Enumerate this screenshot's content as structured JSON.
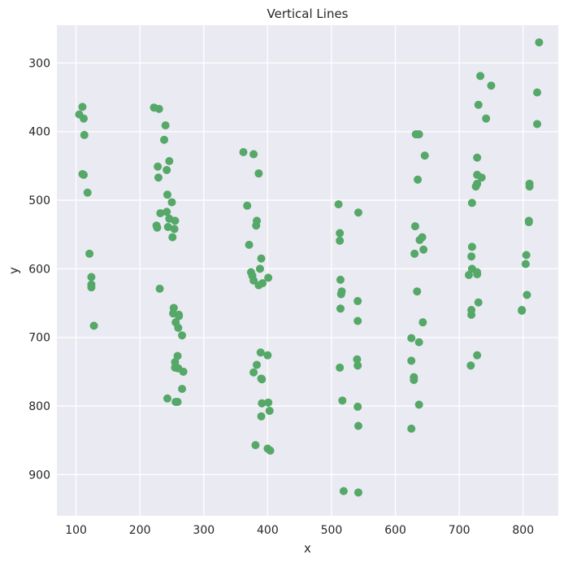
{
  "chart_data": {
    "type": "scatter",
    "title": "Vertical Lines",
    "xlabel": "x",
    "ylabel": "y",
    "xlim": [
      70,
      855
    ],
    "ylim": [
      960,
      245
    ],
    "y_inverted": true,
    "grid": true,
    "x_ticks": [
      100,
      200,
      300,
      400,
      500,
      600,
      700,
      800
    ],
    "y_ticks": [
      300,
      400,
      500,
      600,
      700,
      800,
      900
    ],
    "colors": {
      "background": "#eaeaf2",
      "grid": "#ffffff",
      "marker": "#55a868"
    },
    "series": [
      {
        "points": [
          [
            105,
            375
          ],
          [
            110,
            364
          ],
          [
            112,
            381
          ],
          [
            113,
            405
          ],
          [
            110,
            462
          ],
          [
            112,
            463
          ],
          [
            118,
            489
          ],
          [
            121,
            578
          ],
          [
            124,
            612
          ],
          [
            124,
            623
          ],
          [
            124,
            627
          ],
          [
            128,
            683
          ],
          [
            222,
            365
          ],
          [
            230,
            367
          ],
          [
            240,
            391
          ],
          [
            238,
            412
          ],
          [
            246,
            443
          ],
          [
            228,
            451
          ],
          [
            242,
            456
          ],
          [
            229,
            467
          ],
          [
            243,
            492
          ],
          [
            250,
            503
          ],
          [
            232,
            519
          ],
          [
            242,
            517
          ],
          [
            246,
            527
          ],
          [
            255,
            530
          ],
          [
            226,
            537
          ],
          [
            227,
            540
          ],
          [
            244,
            539
          ],
          [
            254,
            542
          ],
          [
            251,
            554
          ],
          [
            231,
            629
          ],
          [
            253,
            657
          ],
          [
            252,
            665
          ],
          [
            261,
            667
          ],
          [
            261,
            669
          ],
          [
            256,
            678
          ],
          [
            260,
            686
          ],
          [
            266,
            697
          ],
          [
            259,
            727
          ],
          [
            255,
            736
          ],
          [
            255,
            744
          ],
          [
            260,
            745
          ],
          [
            268,
            750
          ],
          [
            266,
            775
          ],
          [
            243,
            789
          ],
          [
            256,
            794
          ],
          [
            259,
            794
          ],
          [
            362,
            430
          ],
          [
            378,
            433
          ],
          [
            386,
            461
          ],
          [
            368,
            508
          ],
          [
            383,
            530
          ],
          [
            382,
            537
          ],
          [
            371,
            565
          ],
          [
            390,
            585
          ],
          [
            374,
            605
          ],
          [
            376,
            610
          ],
          [
            388,
            600
          ],
          [
            378,
            617
          ],
          [
            386,
            624
          ],
          [
            392,
            621
          ],
          [
            401,
            613
          ],
          [
            389,
            722
          ],
          [
            400,
            726
          ],
          [
            383,
            740
          ],
          [
            378,
            751
          ],
          [
            390,
            760
          ],
          [
            391,
            761
          ],
          [
            401,
            795
          ],
          [
            391,
            796
          ],
          [
            403,
            807
          ],
          [
            390,
            815
          ],
          [
            381,
            857
          ],
          [
            400,
            862
          ],
          [
            404,
            865
          ],
          [
            511,
            506
          ],
          [
            513,
            548
          ],
          [
            513,
            559
          ],
          [
            542,
            518
          ],
          [
            514,
            616
          ],
          [
            516,
            633
          ],
          [
            515,
            637
          ],
          [
            541,
            647
          ],
          [
            514,
            658
          ],
          [
            541,
            676
          ],
          [
            540,
            732
          ],
          [
            541,
            741
          ],
          [
            513,
            744
          ],
          [
            517,
            792
          ],
          [
            541,
            801
          ],
          [
            542,
            829
          ],
          [
            519,
            924
          ],
          [
            542,
            926
          ],
          [
            632,
            404
          ],
          [
            635,
            404
          ],
          [
            637,
            404
          ],
          [
            646,
            435
          ],
          [
            635,
            470
          ],
          [
            631,
            538
          ],
          [
            642,
            554
          ],
          [
            638,
            558
          ],
          [
            644,
            572
          ],
          [
            630,
            578
          ],
          [
            634,
            633
          ],
          [
            643,
            678
          ],
          [
            625,
            701
          ],
          [
            637,
            707
          ],
          [
            625,
            734
          ],
          [
            629,
            758
          ],
          [
            629,
            762
          ],
          [
            637,
            798
          ],
          [
            625,
            833
          ],
          [
            733,
            319
          ],
          [
            750,
            333
          ],
          [
            730,
            361
          ],
          [
            742,
            381
          ],
          [
            728,
            438
          ],
          [
            728,
            463
          ],
          [
            735,
            467
          ],
          [
            728,
            476
          ],
          [
            726,
            480
          ],
          [
            720,
            504
          ],
          [
            720,
            568
          ],
          [
            719,
            582
          ],
          [
            720,
            600
          ],
          [
            715,
            609
          ],
          [
            728,
            605
          ],
          [
            728,
            608
          ],
          [
            730,
            649
          ],
          [
            719,
            660
          ],
          [
            719,
            667
          ],
          [
            728,
            726
          ],
          [
            718,
            741
          ],
          [
            825,
            270
          ],
          [
            822,
            343
          ],
          [
            822,
            389
          ],
          [
            810,
            476
          ],
          [
            810,
            480
          ],
          [
            809,
            530
          ],
          [
            809,
            532
          ],
          [
            805,
            580
          ],
          [
            804,
            593
          ],
          [
            806,
            638
          ],
          [
            798,
            660
          ],
          [
            798,
            661
          ]
        ]
      }
    ]
  }
}
